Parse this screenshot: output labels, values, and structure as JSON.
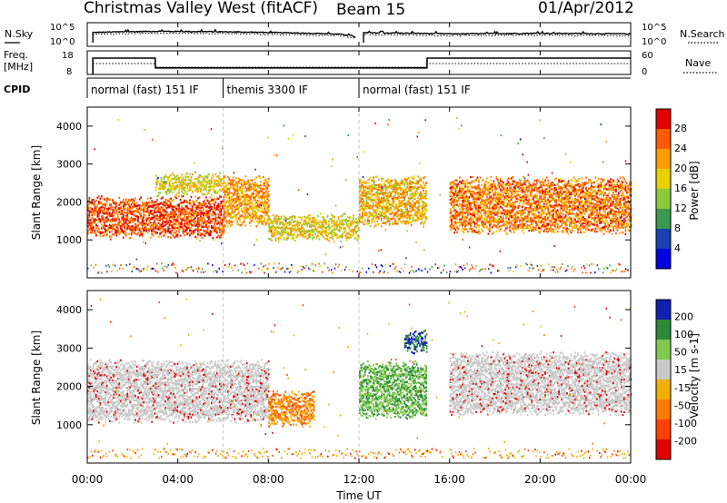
{
  "header": {
    "station": "Christmas Valley West (fitACF)",
    "beam": "Beam 15",
    "date": "01/Apr/2012"
  },
  "noise_panel": {
    "left_label": "N.Sky",
    "right_label": "N.Search",
    "left_ticks": [
      "10^5",
      "10^0"
    ],
    "right_ticks": [
      "10^5",
      "10^0"
    ]
  },
  "freq_panel": {
    "left_label_1": "Freq.",
    "left_label_2": "[MHz]",
    "right_label": "Nave",
    "left_ticks": [
      "18",
      "8"
    ],
    "right_ticks": [
      "60",
      "0"
    ]
  },
  "cpid": {
    "label": "CPID",
    "segments": [
      {
        "name": "normal (fast) 151 IF",
        "start_h": 0,
        "end_h": 6
      },
      {
        "name": "themis 3300 IF",
        "start_h": 6,
        "end_h": 12
      },
      {
        "name": "normal (fast) 151 IF",
        "start_h": 12,
        "end_h": 24
      }
    ]
  },
  "power_panel": {
    "ylabel": "Slant Range [km]",
    "yticks": [
      1000,
      2000,
      3000,
      4000
    ],
    "colorbar_label": "Power [dB]",
    "colorbar_ticks": [
      "28",
      "24",
      "20",
      "16",
      "12",
      "8",
      "4"
    ],
    "colors": [
      "#e00000",
      "#ff5a00",
      "#ff9a00",
      "#e8d000",
      "#8cc838",
      "#3a9a50",
      "#1840b0",
      "#0000e0"
    ]
  },
  "velocity_panel": {
    "ylabel": "Slant Range [km]",
    "yticks": [
      1000,
      2000,
      3000,
      4000
    ],
    "colorbar_label": "Velocity [m s-1]",
    "colorbar_ticks": [
      "200",
      "100",
      "50",
      "15",
      "-15",
      "-50",
      "-100",
      "-200"
    ],
    "colors": [
      "#1020b0",
      "#2a8a3a",
      "#80c850",
      "#c8c8c8",
      "#f0b000",
      "#ff7800",
      "#ff4000",
      "#e00000"
    ]
  },
  "x_axis": {
    "label": "Time UT",
    "ticks": [
      "00:00",
      "04:00",
      "08:00",
      "12:00",
      "16:00",
      "20:00",
      "00:00"
    ]
  },
  "chart_data": [
    {
      "type": "line",
      "title": "Christmas Valley West (fitACF) Beam 15 01/Apr/2012",
      "xlabel": "Time UT",
      "ylabel": "N.Sky",
      "xlim": [
        0,
        24
      ],
      "series": [
        {
          "name": "N.Sky",
          "x": [
            0.25,
            3,
            6,
            8,
            11.9,
            12.2,
            16,
            20,
            24
          ],
          "values": [
            10000,
            30000,
            20000,
            10000,
            1,
            8000,
            3000,
            5000,
            3000
          ]
        }
      ]
    },
    {
      "type": "line",
      "xlabel": "Time UT",
      "ylabel": "Freq. [MHz]",
      "xlim": [
        0,
        24
      ],
      "ylim": [
        8,
        18
      ],
      "series": [
        {
          "name": "Freq.",
          "x": [
            0.25,
            3,
            3.01,
            11.9,
            12.2,
            15,
            15.01,
            24
          ],
          "values": [
            15.5,
            15.5,
            11,
            11,
            11,
            11,
            15.5,
            15.5
          ]
        },
        {
          "name": "Nave",
          "x": [
            0.25,
            3,
            3.01,
            11.9,
            12.2,
            15,
            15.01,
            24
          ],
          "values": [
            30,
            30,
            20,
            20,
            20,
            20,
            30,
            30
          ]
        }
      ]
    },
    {
      "type": "heatmap",
      "title": "Power [dB]",
      "xlabel": "Time UT",
      "ylabel": "Slant Range [km]",
      "xlim": [
        0,
        24
      ],
      "ylim": [
        0,
        4500
      ],
      "colorbar_range": [
        0,
        30
      ],
      "regions": [
        {
          "t_start": 0,
          "t_end": 6,
          "range_low": 1200,
          "range_high": 2100,
          "value": 27
        },
        {
          "t_start": 3,
          "t_end": 6,
          "range_low": 2300,
          "range_high": 2700,
          "value": 18
        },
        {
          "t_start": 6,
          "t_end": 8,
          "range_low": 1500,
          "range_high": 2600,
          "value": 22
        },
        {
          "t_start": 8,
          "t_end": 12,
          "range_low": 1100,
          "range_high": 1600,
          "value": 18
        },
        {
          "t_start": 12,
          "t_end": 15,
          "range_low": 1500,
          "range_high": 2600,
          "value": 20
        },
        {
          "t_start": 16,
          "t_end": 24,
          "range_low": 1300,
          "range_high": 2600,
          "value": 24
        }
      ]
    },
    {
      "type": "heatmap",
      "title": "Velocity [m s-1]",
      "xlabel": "Time UT",
      "ylabel": "Slant Range [km]",
      "xlim": [
        0,
        24
      ],
      "ylim": [
        0,
        4500
      ],
      "colorbar_range": [
        -200,
        200
      ],
      "regions": [
        {
          "t_start": 0,
          "t_end": 8,
          "range_low": 1200,
          "range_high": 2600,
          "value": 0
        },
        {
          "t_start": 8,
          "t_end": 10,
          "range_low": 1100,
          "range_high": 1800,
          "value": -60
        },
        {
          "t_start": 12,
          "t_end": 15,
          "range_low": 1300,
          "range_high": 2600,
          "value": 60
        },
        {
          "t_start": 14,
          "t_end": 15,
          "range_low": 3000,
          "range_high": 3400,
          "value": 150
        },
        {
          "t_start": 16,
          "t_end": 24,
          "range_low": 1400,
          "range_high": 2800,
          "value": 0
        }
      ]
    }
  ]
}
